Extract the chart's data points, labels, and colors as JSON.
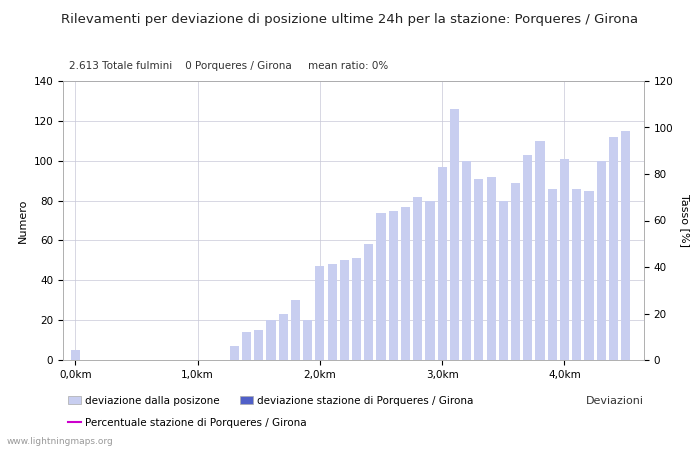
{
  "title": "Rilevamenti per deviazione di posizione ultime 24h per la stazione: Porqueres / Girona",
  "subtitle": "2.613 Totale fulmini    0 Porqueres / Girona     mean ratio: 0%",
  "ylabel_left": "Numero",
  "ylabel_right": "Tasso [%]",
  "xlabel_bottom": "Deviazioni",
  "watermark": "www.lightningmaps.org",
  "ylim_left": [
    0,
    140
  ],
  "ylim_right": [
    0,
    120
  ],
  "yticks_left": [
    0,
    20,
    40,
    60,
    80,
    100,
    120,
    140
  ],
  "yticks_right": [
    0,
    20,
    40,
    60,
    80,
    100,
    120
  ],
  "xtick_positions": [
    0.0,
    1.0,
    2.0,
    3.0,
    4.0
  ],
  "xtick_labels": [
    "0,0km",
    "1,0km",
    "2,0km",
    "3,0km",
    "4,0km"
  ],
  "bar_color_light": "#c8cef0",
  "bar_color_dark": "#5060c8",
  "bar_positions": [
    0.0,
    0.1,
    0.2,
    0.3,
    0.4,
    0.5,
    0.6,
    0.7,
    0.8,
    0.9,
    1.0,
    1.1,
    1.2,
    1.3,
    1.4,
    1.5,
    1.6,
    1.7,
    1.8,
    1.9,
    2.0,
    2.1,
    2.2,
    2.3,
    2.4,
    2.5,
    2.6,
    2.7,
    2.8,
    2.9,
    3.0,
    3.1,
    3.2,
    3.3,
    3.4,
    3.5,
    3.6,
    3.7,
    3.8,
    3.9,
    4.0,
    4.1,
    4.2,
    4.3,
    4.4,
    4.5
  ],
  "bar_heights_light": [
    5,
    0,
    0,
    0,
    0,
    0,
    0,
    0,
    0,
    0,
    0,
    0,
    0,
    7,
    14,
    15,
    20,
    23,
    30,
    20,
    47,
    48,
    50,
    51,
    58,
    74,
    75,
    77,
    82,
    80,
    97,
    126,
    100,
    91,
    92,
    80,
    89,
    103,
    110,
    86,
    101,
    86,
    85,
    100,
    112,
    115
  ],
  "bar_heights_dark": [
    0,
    0,
    0,
    0,
    0,
    0,
    0,
    0,
    0,
    0,
    0,
    0,
    0,
    0,
    0,
    0,
    0,
    0,
    0,
    0,
    0,
    0,
    0,
    0,
    0,
    0,
    0,
    0,
    0,
    0,
    0,
    0,
    0,
    0,
    0,
    0,
    0,
    0,
    0,
    0,
    0,
    0,
    0,
    0,
    0,
    0
  ],
  "xlim": [
    -0.1,
    4.65
  ],
  "line_color": "#cc00cc",
  "bg_color": "#ffffff",
  "grid_color": "#c8c8d8",
  "title_fontsize": 9.5,
  "subtitle_fontsize": 7.5,
  "axis_label_fontsize": 8,
  "tick_fontsize": 7.5,
  "legend_fontsize": 7.5,
  "watermark_fontsize": 6.5
}
